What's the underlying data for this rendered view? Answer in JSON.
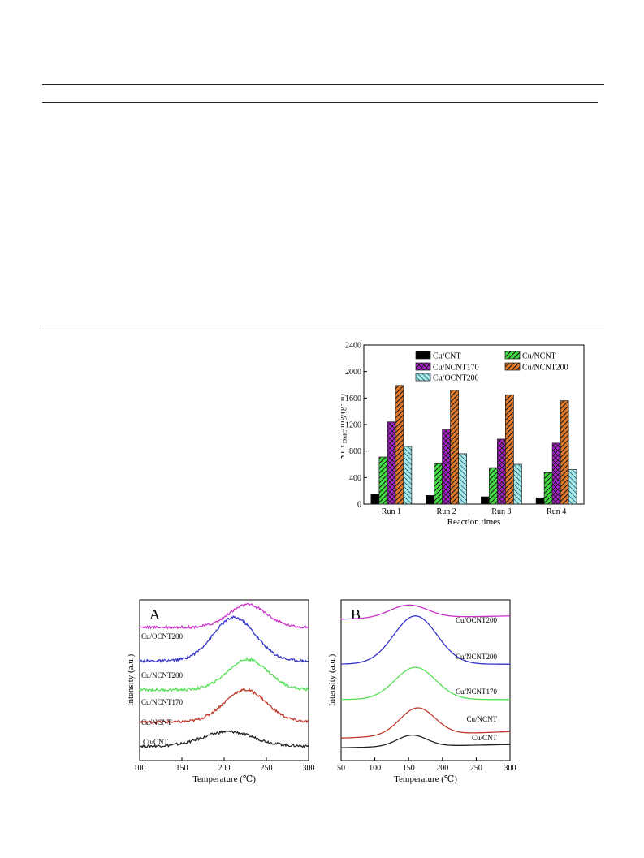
{
  "chart_data": [
    {
      "id": "stability",
      "type": "bar",
      "xlabel": "Reaction times",
      "ylabel": "STY",
      "ylabel_sub": "DMC",
      "ylabel_unit": "/mg/(g· h)",
      "ylabel_sup": "-1",
      "ylim": [
        0,
        2400
      ],
      "yticks": [
        0,
        400,
        800,
        1200,
        1600,
        2000,
        2400
      ],
      "categories": [
        "Run 1",
        "Run 2",
        "Run 3",
        "Run 4"
      ],
      "legend_position": "top",
      "series": [
        {
          "name": "Cu/CNT",
          "color": "#000000",
          "pattern": "solid",
          "values": [
            150,
            130,
            110,
            95
          ]
        },
        {
          "name": "Cu/NCNT",
          "color": "#44dd44",
          "pattern": "diag",
          "values": [
            710,
            610,
            550,
            475
          ]
        },
        {
          "name": "Cu/NCNT170",
          "color": "#aa22cc",
          "pattern": "cross",
          "values": [
            1240,
            1120,
            980,
            920
          ]
        },
        {
          "name": "Cu/NCNT200",
          "color": "#e07a2a",
          "pattern": "diag",
          "values": [
            1790,
            1720,
            1650,
            1560
          ]
        },
        {
          "name": "Cu/OCNT200",
          "color": "#a8e8e8",
          "pattern": "backdiag",
          "values": [
            870,
            760,
            600,
            520
          ]
        }
      ]
    },
    {
      "id": "tpd-A",
      "type": "line",
      "panel_label": "A",
      "xlabel": "Temperature (℃)",
      "ylabel": "Intensity (a.u.)",
      "xlim": [
        100,
        300
      ],
      "xticks": [
        100,
        150,
        200,
        250,
        300
      ],
      "series": [
        {
          "name": "Cu/CNT",
          "color": "#222222",
          "baseline": 0.09,
          "slope": 0.0,
          "peak_x": 205,
          "peak_h": 0.09,
          "width": 30,
          "noise": 0.008
        },
        {
          "name": "Cu/NCNT",
          "color": "#c0392b",
          "baseline": 0.24,
          "slope": 0.0,
          "peak_x": 225,
          "peak_h": 0.2,
          "width": 25,
          "noise": 0.008
        },
        {
          "name": "Cu/NCNT170",
          "color": "#55e055",
          "baseline": 0.44,
          "slope": 0.0,
          "peak_x": 228,
          "peak_h": 0.19,
          "width": 24,
          "noise": 0.008
        },
        {
          "name": "Cu/NCNT200",
          "color": "#3333cc",
          "baseline": 0.62,
          "slope": 0.0,
          "peak_x": 212,
          "peak_h": 0.27,
          "width": 25,
          "noise": 0.008
        },
        {
          "name": "Cu/OCNT200",
          "color": "#cc33cc",
          "baseline": 0.83,
          "slope": 0.0,
          "peak_x": 228,
          "peak_h": 0.14,
          "width": 22,
          "noise": 0.008
        }
      ]
    },
    {
      "id": "tpd-B",
      "type": "line",
      "panel_label": "B",
      "xlabel": "Temperature (℃)",
      "ylabel": "Intensity (a.u.)",
      "xlim": [
        50,
        300
      ],
      "xticks": [
        50,
        100,
        150,
        200,
        250,
        300
      ],
      "series": [
        {
          "name": "Cu/CNT",
          "color": "#222222",
          "baseline": 0.08,
          "slope": 0.02,
          "peak_x": 155,
          "peak_h": 0.07,
          "width": 22,
          "noise": 0
        },
        {
          "name": "Cu/NCNT",
          "color": "#c0392b",
          "baseline": 0.14,
          "slope": 0.04,
          "peak_x": 163,
          "peak_h": 0.17,
          "width": 26,
          "noise": 0
        },
        {
          "name": "Cu/NCNT170",
          "color": "#55e055",
          "baseline": 0.38,
          "slope": 0.0,
          "peak_x": 160,
          "peak_h": 0.2,
          "width": 30,
          "noise": 0
        },
        {
          "name": "Cu/NCNT200",
          "color": "#3333cc",
          "baseline": 0.6,
          "slope": 0.0,
          "peak_x": 160,
          "peak_h": 0.3,
          "width": 32,
          "noise": 0
        },
        {
          "name": "Cu/OCNT200",
          "color": "#cc33cc",
          "baseline": 0.88,
          "slope": 0.02,
          "peak_x": 150,
          "peak_h": 0.08,
          "width": 28,
          "noise": 0
        }
      ]
    }
  ]
}
